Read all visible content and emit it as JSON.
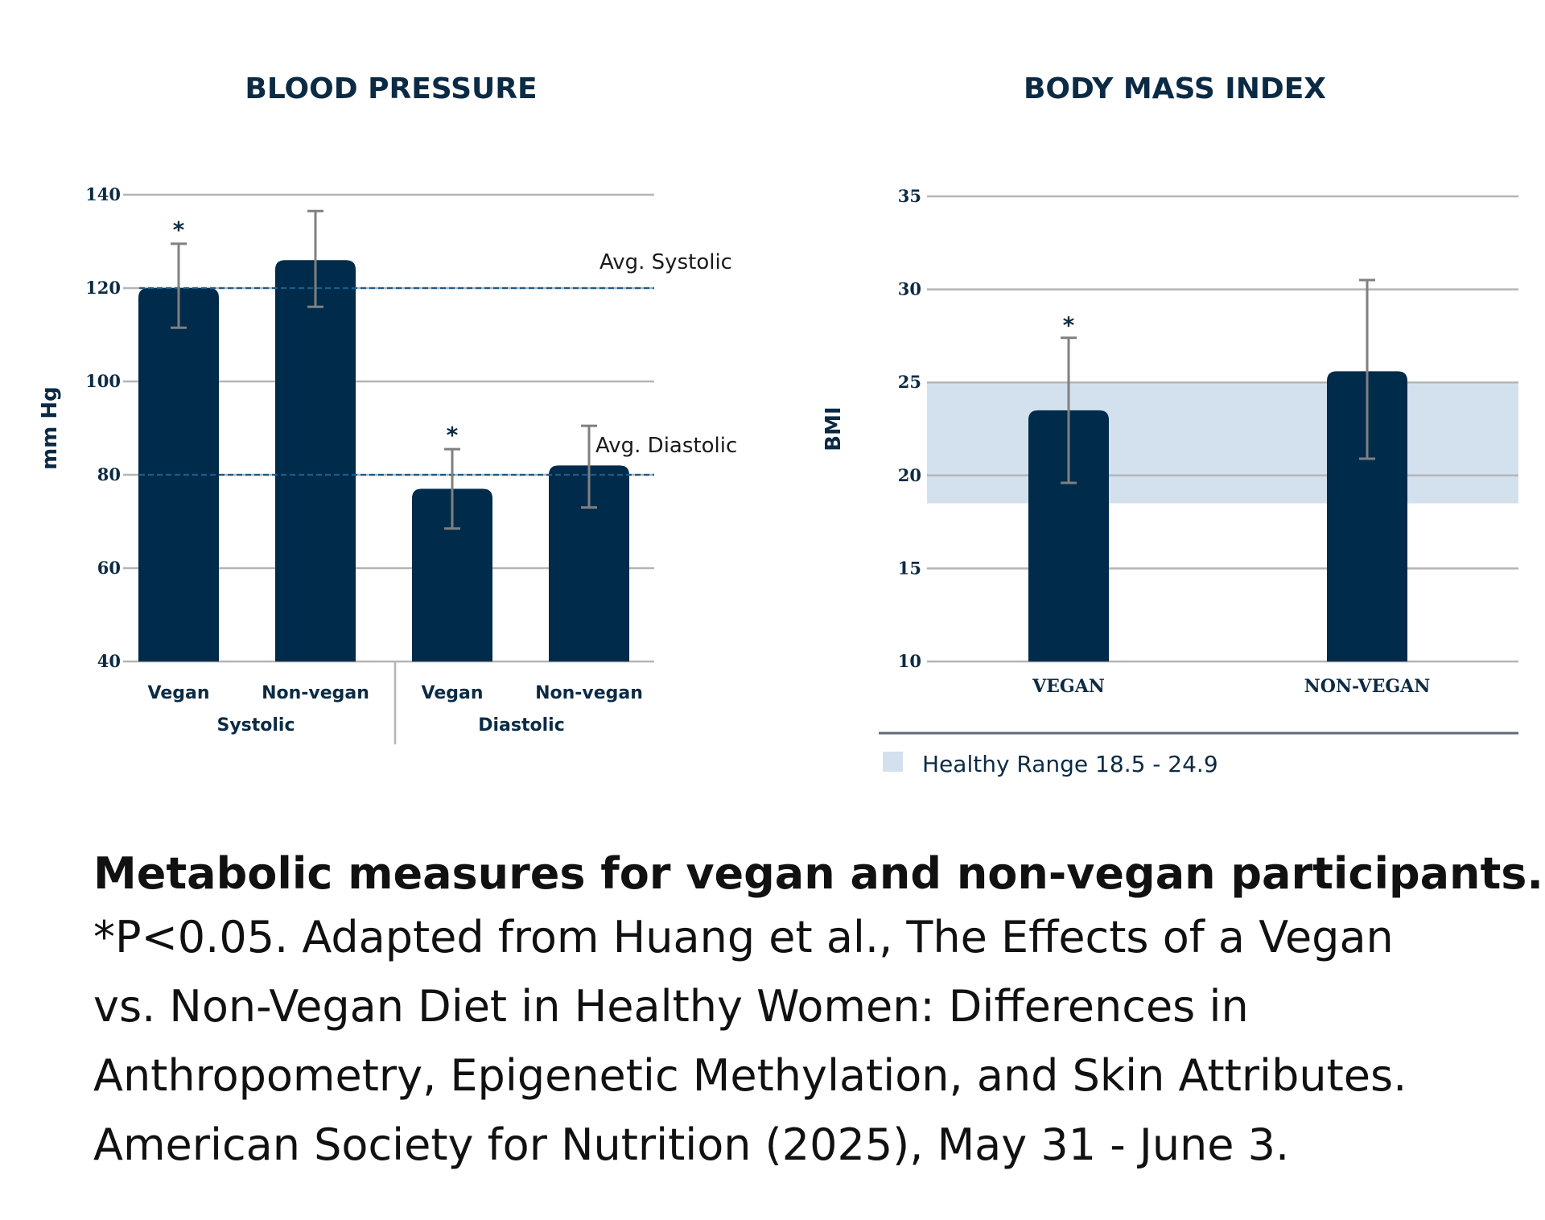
{
  "chart_data": [
    {
      "type": "bar",
      "title": "BLOOD PRESSURE",
      "ylabel": "mm Hg",
      "ylim": [
        40,
        140
      ],
      "yticks": [
        40,
        60,
        80,
        100,
        120,
        140
      ],
      "grid": true,
      "groups": [
        {
          "label": "Systolic",
          "categories": [
            "Vegan",
            "Non-vegan"
          ]
        },
        {
          "label": "Diastolic",
          "categories": [
            "Vegan",
            "Non-vegan"
          ]
        }
      ],
      "categories": [
        "Vegan",
        "Non-vegan",
        "Vegan",
        "Non-vegan"
      ],
      "values": [
        120,
        126,
        77,
        82
      ],
      "error_low": [
        111.5,
        116,
        68.5,
        73
      ],
      "error_high": [
        129.5,
        136.5,
        85.5,
        90.5
      ],
      "significant": [
        true,
        false,
        true,
        false
      ],
      "significance_marker": "*",
      "reference_lines": [
        {
          "label": "Avg. Systolic",
          "value": 120
        },
        {
          "label": "Avg. Diastolic",
          "value": 80
        }
      ],
      "bar_color": "#002b4b"
    },
    {
      "type": "bar",
      "title": "BODY MASS INDEX",
      "ylabel": "BMI",
      "ylim": [
        10,
        35
      ],
      "yticks": [
        10,
        15,
        20,
        25,
        30,
        35
      ],
      "grid": true,
      "categories": [
        "VEGAN",
        "NON-VEGAN"
      ],
      "values": [
        23.5,
        25.6
      ],
      "error_low": [
        19.6,
        20.9
      ],
      "error_high": [
        27.4,
        30.5
      ],
      "significant": [
        true,
        false
      ],
      "significance_marker": "*",
      "band": {
        "low": 18.5,
        "high": 24.9,
        "label": "Healthy Range 18.5 - 24.9",
        "color": "#d3e1ee"
      },
      "bar_color": "#002b4b"
    }
  ],
  "caption": {
    "heading": "Metabolic measures for vegan and non-vegan participants.",
    "lines": [
      "*P<0.05. Adapted from Huang et al., The Effects of a Vegan",
      "vs. Non-Vegan Diet in Healthy Women: Differences in",
      "Anthropometry, Epigenetic Methylation, and Skin Attributes.",
      "American Society for Nutrition (2025), May 31 - June 3."
    ]
  }
}
